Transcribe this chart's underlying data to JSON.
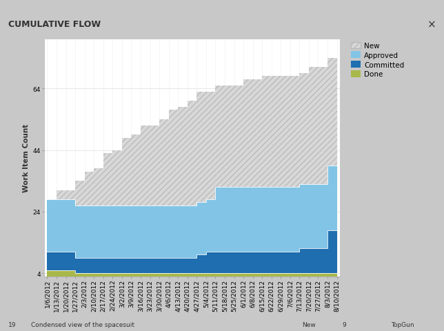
{
  "title": "CUMULATIVE FLOW",
  "ylabel": "Work Item Count",
  "dates": [
    "1/6/2012",
    "1/13/2012",
    "1/20/2012",
    "1/27/2012",
    "2/3/2012",
    "2/10/2012",
    "2/17/2012",
    "2/24/2012",
    "3/2/2012",
    "3/9/2012",
    "3/16/2012",
    "3/23/2012",
    "3/30/2012",
    "4/6/2012",
    "4/13/2012",
    "4/20/2012",
    "4/27/2012",
    "5/4/2012",
    "5/11/2012",
    "5/18/2012",
    "5/25/2012",
    "6/1/2012",
    "6/8/2012",
    "6/15/2012",
    "6/22/2012",
    "6/29/2012",
    "7/6/2012",
    "7/13/2012",
    "7/20/2012",
    "7/27/2012",
    "8/3/2012",
    "8/10/2012"
  ],
  "done": [
    5,
    5,
    5,
    4,
    4,
    4,
    4,
    4,
    4,
    4,
    4,
    4,
    4,
    4,
    4,
    4,
    4,
    4,
    4,
    4,
    4,
    4,
    4,
    4,
    4,
    4,
    4,
    4,
    4,
    4,
    4,
    4
  ],
  "committed": [
    6,
    6,
    6,
    5,
    5,
    5,
    5,
    5,
    5,
    5,
    5,
    5,
    5,
    5,
    5,
    5,
    6,
    7,
    7,
    7,
    7,
    7,
    7,
    7,
    7,
    7,
    7,
    8,
    8,
    8,
    14,
    14
  ],
  "approved": [
    17,
    17,
    17,
    17,
    17,
    17,
    17,
    17,
    17,
    17,
    17,
    17,
    17,
    17,
    17,
    17,
    17,
    17,
    21,
    21,
    21,
    21,
    21,
    21,
    21,
    21,
    21,
    21,
    21,
    21,
    21,
    21
  ],
  "new_total": [
    25,
    31,
    31,
    34,
    37,
    38,
    43,
    44,
    48,
    49,
    52,
    52,
    54,
    57,
    58,
    60,
    63,
    63,
    65,
    65,
    65,
    67,
    67,
    68,
    68,
    68,
    68,
    69,
    71,
    71,
    74,
    76
  ],
  "yticks": [
    4,
    24,
    44,
    64
  ],
  "ylim": [
    3,
    80
  ],
  "outer_bg": "#c8c8c8",
  "titlebar_bg": "#e4e4e4",
  "chart_bg": "#ffffff",
  "new_face_color": "#d8d8d8",
  "new_hatch_color": "#bbbbbb",
  "approved_color": "#82c4e6",
  "committed_color": "#1e6eb0",
  "done_color": "#a8b84a",
  "title_fontsize": 9,
  "label_fontsize": 7.5,
  "tick_fontsize": 6.5,
  "legend_fontsize": 7.5
}
